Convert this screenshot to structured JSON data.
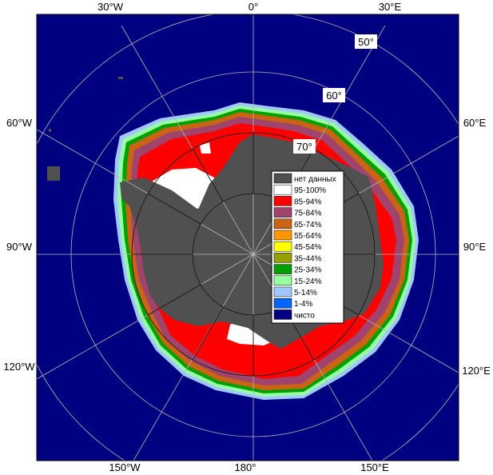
{
  "map": {
    "lon_labels_top": [
      "30°W",
      "0°",
      "30°E"
    ],
    "lon_labels_left": [
      "60°W",
      "90°W",
      "120°W"
    ],
    "lon_labels_right": [
      "60°E",
      "90°E",
      "120°E"
    ],
    "lon_labels_bottom": [
      "150°W",
      "180°",
      "150°E"
    ],
    "lat_labels": [
      "50°",
      "60°",
      "70°"
    ]
  },
  "colors": {
    "ocean": "#000080",
    "land": "#505050",
    "no_data": "#505050",
    "c95_100": "#ffffff",
    "c85_94": "#ff0000",
    "c75_84": "#a0446e",
    "c65_74": "#c86414",
    "c55_64": "#ff9600",
    "c45_54": "#ffff00",
    "c35_44": "#96a000",
    "c25_34": "#00a000",
    "c15_24": "#96ffa0",
    "c5_14": "#a0c8ff",
    "c1_4": "#0064ff",
    "clear": "#000080"
  },
  "legend": {
    "items": [
      {
        "label": "нет данных",
        "color": "#505050"
      },
      {
        "label": "95-100%",
        "color": "#ffffff"
      },
      {
        "label": "85-94%",
        "color": "#ff0000"
      },
      {
        "label": "75-84%",
        "color": "#a0446e"
      },
      {
        "label": "65-74%",
        "color": "#c86414"
      },
      {
        "label": "55-64%",
        "color": "#ff9600"
      },
      {
        "label": "45-54%",
        "color": "#ffff00"
      },
      {
        "label": "35-44%",
        "color": "#96a000"
      },
      {
        "label": "25-34%",
        "color": "#00a000"
      },
      {
        "label": "15-24%",
        "color": "#96ffa0"
      },
      {
        "label": "5-14%",
        "color": "#a0c8ff"
      },
      {
        "label": "1-4%",
        "color": "#0064ff"
      },
      {
        "label": "чисто",
        "color": "#000080"
      }
    ]
  }
}
